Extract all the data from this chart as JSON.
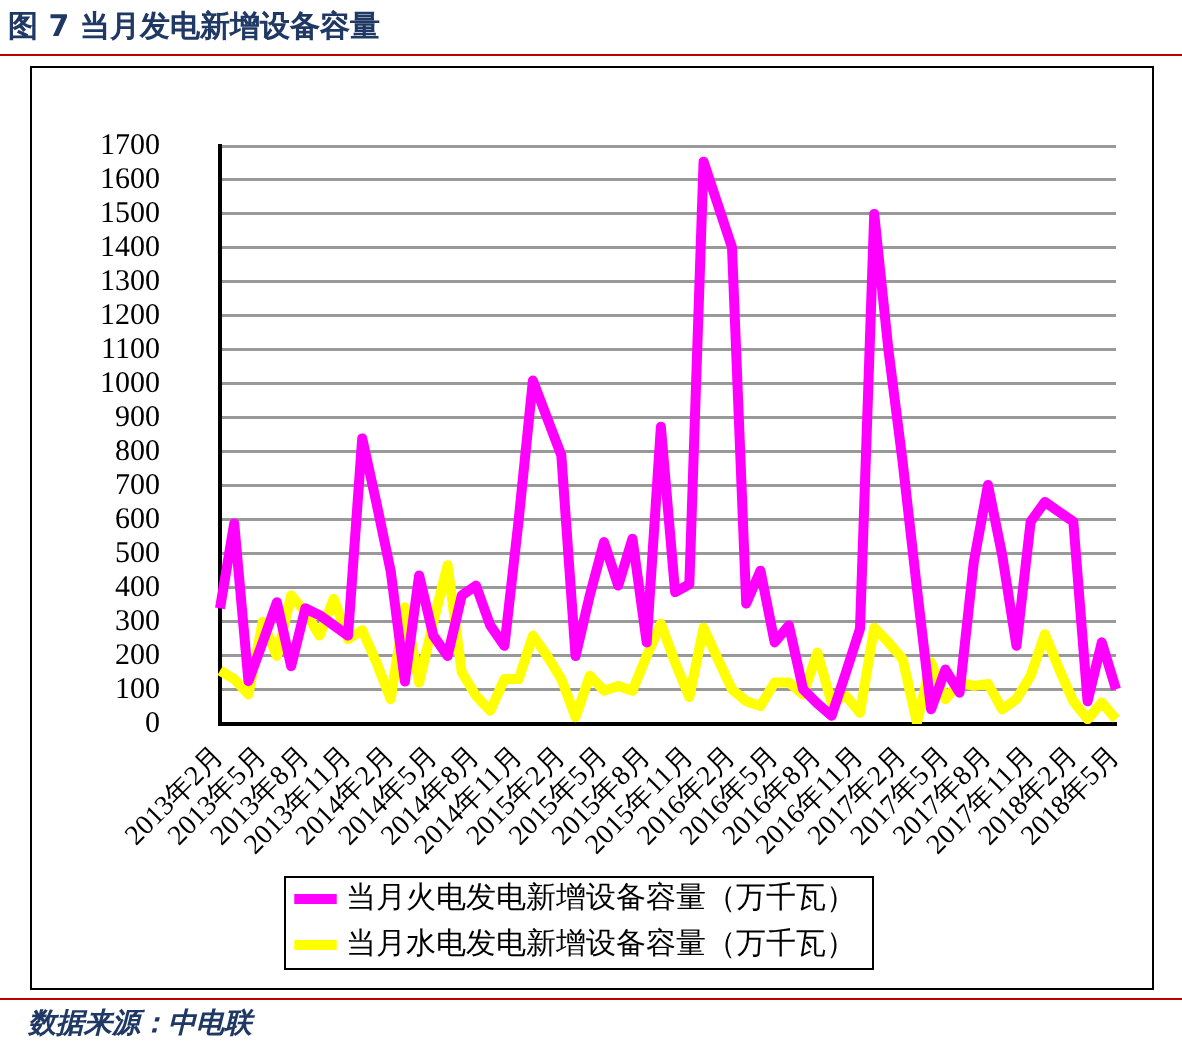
{
  "chart_data": {
    "type": "line",
    "title": "图 7 当月发电新增设备容量",
    "categories": [
      "2013年2月",
      null,
      null,
      "2013年5月",
      null,
      null,
      "2013年8月",
      null,
      null,
      "2013年11月",
      null,
      null,
      "2014年2月",
      null,
      null,
      "2014年5月",
      null,
      null,
      "2014年8月",
      null,
      null,
      "2014年11月",
      null,
      null,
      "2015年2月",
      null,
      null,
      "2015年5月",
      null,
      null,
      "2015年8月",
      null,
      null,
      "2015年11月",
      null,
      null,
      "2016年2月",
      null,
      null,
      "2016年5月",
      null,
      null,
      "2016年8月",
      null,
      null,
      "2016年11月",
      null,
      null,
      "2017年2月",
      null,
      null,
      "2017年5月",
      null,
      null,
      "2017年8月",
      null,
      null,
      "2017年11月",
      null,
      null,
      "2018年2月",
      null,
      null,
      "2018年5月"
    ],
    "series": [
      {
        "name": "当月火电发电新增设备容量（万千瓦）",
        "color": "#ff00ff",
        "values": [
          340,
          590,
          126,
          240,
          358,
          170,
          340,
          320,
          290,
          260,
          840,
          650,
          450,
          125,
          437,
          260,
          200,
          378,
          407,
          290,
          230,
          600,
          1010,
          900,
          790,
          200,
          378,
          535,
          407,
          545,
          240,
          874,
          388,
          411,
          1654,
          1528,
          1402,
          354,
          451,
          240,
          290,
          102,
          60,
          24,
          150,
          280,
          1500,
          1100,
          770,
          400,
          43,
          160,
          92,
          476,
          703,
          496,
          230,
          595,
          653,
          624,
          595,
          67,
          240,
          102
        ]
      },
      {
        "name": "当月水电发电新增设备容量（万千瓦）",
        "color": "#ffff00",
        "values": [
          157,
          132,
          87,
          300,
          200,
          378,
          329,
          260,
          368,
          250,
          276,
          181,
          73,
          343,
          122,
          300,
          467,
          152,
          83,
          39,
          132,
          132,
          260,
          200,
          132,
          20,
          142,
          98,
          112,
          98,
          200,
          295,
          181,
          79,
          283,
          191,
          102,
          67,
          53,
          122,
          122,
          87,
          210,
          63,
          83,
          33,
          283,
          240,
          191,
          4,
          181,
          73,
          122,
          112,
          118,
          43,
          73,
          142,
          264,
          161,
          67,
          14,
          63,
          14
        ]
      }
    ],
    "ylim": [
      0,
      1700
    ],
    "yticks": [
      0,
      100,
      200,
      300,
      400,
      500,
      600,
      700,
      800,
      900,
      1000,
      1100,
      1200,
      1300,
      1400,
      1500,
      1600,
      1700
    ],
    "grid": "y",
    "legend": "bottom",
    "marker": "none",
    "line_style": "solid",
    "annotations": [
      "数据来源：中电联"
    ]
  }
}
